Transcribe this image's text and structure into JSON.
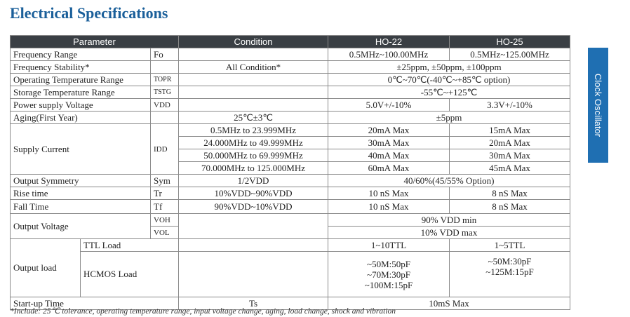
{
  "title": "Electrical Specifications",
  "side_tab": "Clock Oscillator",
  "headers": [
    "Parameter",
    "Condition",
    "HO-22",
    "HO-25"
  ],
  "rows": {
    "freq_range": {
      "param": "Frequency Range",
      "sym": "Fo",
      "cond": "",
      "ho22": "0.5MHz~100.00MHz",
      "ho25": "0.5MHz~125.00MHz"
    },
    "freq_stab": {
      "param": "Frequency Stability*",
      "sym": "",
      "cond": "All Condition*",
      "both": "±25ppm, ±50ppm, ±100ppm"
    },
    "op_temp": {
      "param": "Operating Temperature Range",
      "sym": "TOPR",
      "cond": "",
      "both": "0℃~70℃(-40℃~+85℃ option)"
    },
    "stor_temp": {
      "param": "Storage Temperature Range",
      "sym": "TSTG",
      "cond": "",
      "both": "-55℃~+125℃"
    },
    "power": {
      "param": "Power supply Voltage",
      "sym": "VDD",
      "cond": "",
      "ho22": "5.0V+/-10%",
      "ho25": "3.3V+/-10%"
    },
    "aging": {
      "param": "Aging(First Year)",
      "sym": "",
      "cond": "25℃±3℃",
      "both": "±5ppm"
    },
    "supply": {
      "param": "Supply Current",
      "sym": "IDD",
      "lines": [
        {
          "cond": "0.5MHz to 23.999MHz",
          "ho22": "20mA Max",
          "ho25": "15mA Max"
        },
        {
          "cond": "24.000MHz to 49.999MHz",
          "ho22": "30mA Max",
          "ho25": "20mA Max"
        },
        {
          "cond": "50.000MHz to 69.999MHz",
          "ho22": "40mA Max",
          "ho25": "30mA Max"
        },
        {
          "cond": "70.000MHz to 125.000MHz",
          "ho22": "60mA Max",
          "ho25": "45mA Max"
        }
      ]
    },
    "symmetry": {
      "param": "Output Symmetry",
      "sym": "Sym",
      "cond": "1/2VDD",
      "both": "40/60%(45/55% Option)"
    },
    "rise": {
      "param": "Rise time",
      "sym": "Tr",
      "cond": "10%VDD~90%VDD",
      "ho22": "10 nS Max",
      "ho25": "8 nS Max"
    },
    "fall": {
      "param": "Fall Time",
      "sym": "Tf",
      "cond": "90%VDD~10%VDD",
      "ho22": "10 nS Max",
      "ho25": "8 nS Max"
    },
    "out_volt": {
      "param": "Output Voltage",
      "sym_h": "VOH",
      "sym_l": "VOL",
      "high": "90% VDD min",
      "low": "10% VDD max"
    },
    "out_load": {
      "param": "Output load",
      "ttl_label": "TTL Load",
      "ttl_ho22": "1~10TTL",
      "ttl_ho25": "1~5TTL",
      "hcmos_label": "HCMOS Load",
      "hcmos_ho22": [
        "~50M:50pF",
        "~70M:30pF",
        "~100M:15pF"
      ],
      "hcmos_ho25": [
        "~50M:30pF",
        "~125M:15pF"
      ]
    },
    "startup": {
      "param": "Start-up Time",
      "cond": "Ts",
      "both": "10mS Max"
    }
  },
  "footnote": "*Include: 25℃ tolerance, operating temperature range, input voltage change, aging, load change, shock and vibration"
}
